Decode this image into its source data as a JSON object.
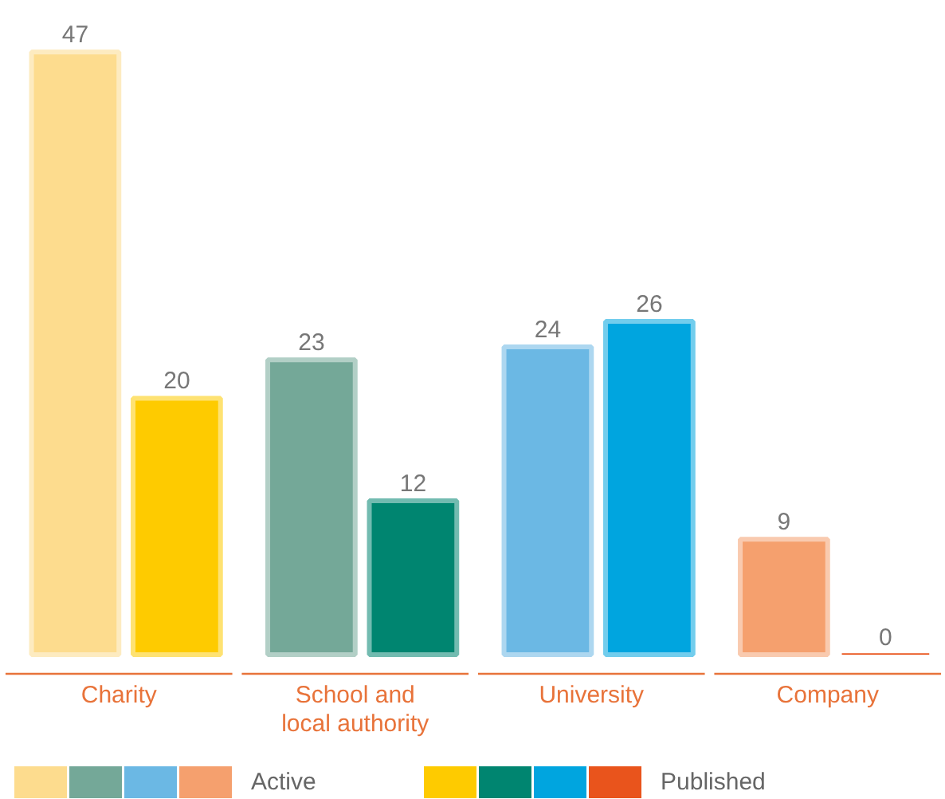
{
  "chart_data": {
    "type": "bar",
    "categories": [
      "Charity",
      "School and local authority",
      "University",
      "Company"
    ],
    "series": [
      {
        "name": "Active",
        "colors": [
          "#fddc8e",
          "#74a898",
          "#6bb8e4",
          "#f5a06e"
        ],
        "values": [
          47,
          23,
          24,
          9
        ]
      },
      {
        "name": "Published",
        "colors": [
          "#fecb00",
          "#008570",
          "#00a5df",
          "#e9541c"
        ],
        "values": [
          20,
          12,
          26,
          0
        ]
      }
    ],
    "data_labels": true,
    "legend": "bottom",
    "grid": false
  }
}
